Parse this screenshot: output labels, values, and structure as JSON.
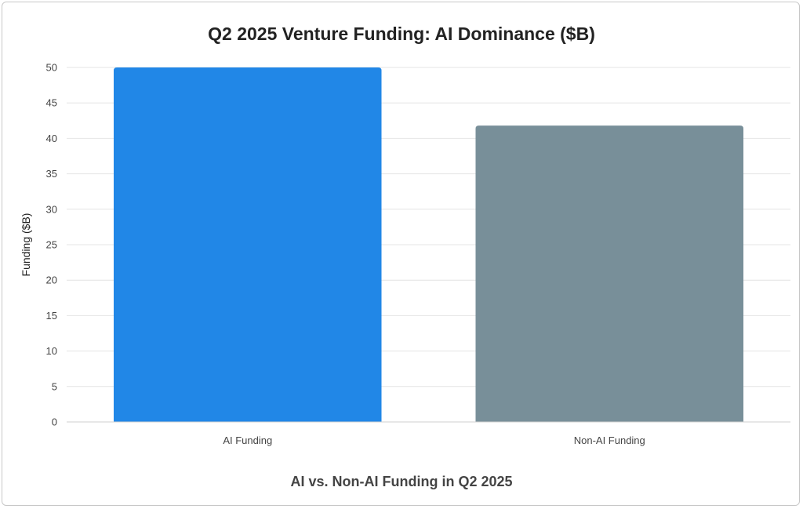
{
  "chart_data": {
    "type": "bar",
    "title": "Q2 2025 Venture Funding: AI Dominance ($B)",
    "xlabel": "AI vs. Non-AI Funding in Q2 2025",
    "ylabel": "Funding ($B)",
    "categories": [
      "AI Funding",
      "Non-AI Funding"
    ],
    "values": [
      50,
      41.8
    ],
    "colors": [
      "#2187e7",
      "#788f99"
    ],
    "ylim": [
      0,
      50
    ],
    "yticks": [
      0,
      5,
      10,
      15,
      20,
      25,
      30,
      35,
      40,
      45,
      50
    ],
    "grid": true,
    "grid_color": "#e4e4e4",
    "legend": false
  }
}
